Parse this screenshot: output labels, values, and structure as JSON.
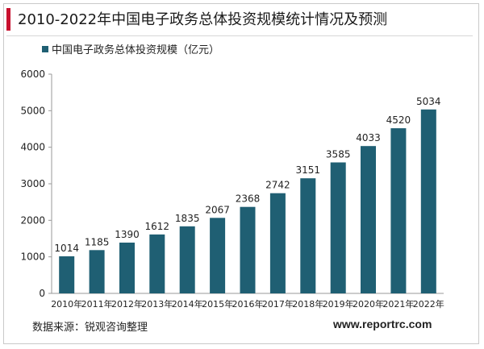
{
  "header": {
    "title": "2010-2022年中国电子政务总体投资规模统计情况及预测"
  },
  "footer": {
    "source": "数据来源：锐观咨询整理",
    "site": "www.reportrc.com"
  },
  "colors": {
    "bar": "#1f5f73",
    "title_accent": "#c8102e"
  },
  "chart_data": {
    "type": "bar",
    "title": "",
    "xlabel": "",
    "ylabel": "",
    "ylim": [
      0,
      6000
    ],
    "yticks": [
      0,
      1000,
      2000,
      3000,
      4000,
      5000,
      6000
    ],
    "grid": false,
    "legend": "top-left",
    "categories": [
      "2010年",
      "2011年",
      "2012年",
      "2013年",
      "2014年",
      "2015年",
      "2016年",
      "2017年",
      "2018年",
      "2019年",
      "2020年",
      "2021年",
      "2022年"
    ],
    "series": [
      {
        "name": "中国电子政务总体投资规模（亿元）",
        "values": [
          1014,
          1185,
          1390,
          1612,
          1835,
          2067,
          2368,
          2742,
          3151,
          3585,
          4033,
          4520,
          5034
        ]
      }
    ]
  }
}
